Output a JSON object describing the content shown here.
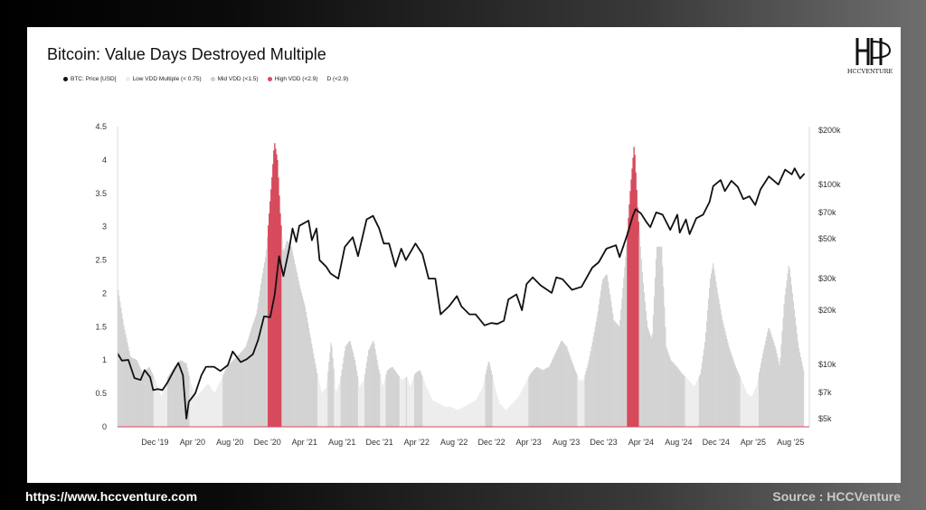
{
  "card": {
    "title": "Bitcoin: Value Days Destroyed Multiple",
    "logo_text": "HCCVENTURE"
  },
  "legend": [
    {
      "label": "BTC: Price [USD]",
      "color": "#111111"
    },
    {
      "label": "Low VDD Multiple (< 0.75)",
      "color": "#ededed"
    },
    {
      "label": "Mid VDD (<1.5)",
      "color": "#cfcfcf"
    },
    {
      "label": "High VDD (<2.9)",
      "color": "#d64a5c"
    },
    {
      "label": "D (<2.9)",
      "color": "#ffffff"
    }
  ],
  "footer": {
    "url": "https://www.hccventure.com",
    "source": "Source : HCCVenture"
  },
  "chart_data": {
    "type": "area",
    "title": "Bitcoin: Value Days Destroyed Multiple",
    "x_ticks": [
      "Dec '19",
      "Apr '20",
      "Aug '20",
      "Dec '20",
      "Apr '21",
      "Aug '21",
      "Dec '21",
      "Apr '22",
      "Aug '22",
      "Dec '22",
      "Apr '23",
      "Aug '23",
      "Dec '23",
      "Apr '24",
      "Aug '24",
      "Dec '24",
      "Apr '25",
      "Aug '25"
    ],
    "y_left": {
      "ticks": [
        "0",
        "0.5",
        "1",
        "1.5",
        "2",
        "2.5",
        "3",
        "3.5",
        "4",
        "4.5"
      ],
      "range": [
        0,
        4.5
      ]
    },
    "y_right": {
      "ticks": [
        "$5k",
        "$7k",
        "$10k",
        "$20k",
        "$30k",
        "$50k",
        "$70k",
        "$100k",
        "$200k"
      ],
      "scale": "log",
      "range": [
        4500,
        210000
      ]
    },
    "x_range": [
      "2019-08",
      "2025-10"
    ],
    "colors": {
      "low": "#ededed",
      "mid": "#d3d3d3",
      "high": "#d64a5c",
      "price": "#111111"
    },
    "vdd": [
      [
        "2019-08-01",
        2.05
      ],
      [
        "2019-08-20",
        1.5
      ],
      [
        "2019-09-10",
        1.05
      ],
      [
        "2019-10-01",
        1.0
      ],
      [
        "2019-10-20",
        0.8
      ],
      [
        "2019-11-10",
        0.9
      ],
      [
        "2019-12-01",
        0.7
      ],
      [
        "2019-12-20",
        0.45
      ],
      [
        "2020-01-10",
        0.75
      ],
      [
        "2020-02-01",
        0.9
      ],
      [
        "2020-02-20",
        1.0
      ],
      [
        "2020-03-10",
        0.95
      ],
      [
        "2020-03-25",
        0.65
      ],
      [
        "2020-04-10",
        0.45
      ],
      [
        "2020-05-01",
        0.55
      ],
      [
        "2020-05-20",
        0.65
      ],
      [
        "2020-06-10",
        0.5
      ],
      [
        "2020-07-01",
        0.7
      ],
      [
        "2020-07-20",
        0.9
      ],
      [
        "2020-08-10",
        1.0
      ],
      [
        "2020-09-01",
        1.1
      ],
      [
        "2020-09-20",
        1.2
      ],
      [
        "2020-10-10",
        1.5
      ],
      [
        "2020-10-25",
        1.7
      ],
      [
        "2020-11-10",
        2.2
      ],
      [
        "2020-11-25",
        2.6
      ],
      [
        "2020-12-05",
        3.2
      ],
      [
        "2020-12-15",
        3.8
      ],
      [
        "2020-12-22",
        4.28
      ],
      [
        "2021-01-01",
        4.0
      ],
      [
        "2021-01-10",
        3.2
      ],
      [
        "2021-01-20",
        2.6
      ],
      [
        "2021-02-01",
        2.8
      ],
      [
        "2021-02-15",
        2.7
      ],
      [
        "2021-03-01",
        2.4
      ],
      [
        "2021-03-15",
        2.1
      ],
      [
        "2021-04-01",
        1.8
      ],
      [
        "2021-04-20",
        1.3
      ],
      [
        "2021-05-10",
        0.8
      ],
      [
        "2021-05-25",
        0.5
      ],
      [
        "2021-06-10",
        0.6
      ],
      [
        "2021-06-25",
        1.3
      ],
      [
        "2021-07-10",
        0.5
      ],
      [
        "2021-07-25",
        0.7
      ],
      [
        "2021-08-10",
        1.2
      ],
      [
        "2021-08-25",
        1.3
      ],
      [
        "2021-09-10",
        1.0
      ],
      [
        "2021-09-25",
        0.6
      ],
      [
        "2021-10-10",
        0.7
      ],
      [
        "2021-10-25",
        1.15
      ],
      [
        "2021-11-10",
        1.3
      ],
      [
        "2021-11-25",
        0.9
      ],
      [
        "2021-12-10",
        0.6
      ],
      [
        "2021-12-25",
        0.85
      ],
      [
        "2022-01-10",
        0.9
      ],
      [
        "2022-01-25",
        0.8
      ],
      [
        "2022-02-10",
        0.7
      ],
      [
        "2022-02-25",
        0.75
      ],
      [
        "2022-03-10",
        0.6
      ],
      [
        "2022-03-25",
        0.8
      ],
      [
        "2022-04-10",
        0.85
      ],
      [
        "2022-05-01",
        0.6
      ],
      [
        "2022-05-20",
        0.4
      ],
      [
        "2022-06-10",
        0.35
      ],
      [
        "2022-07-01",
        0.3
      ],
      [
        "2022-07-20",
        0.3
      ],
      [
        "2022-08-10",
        0.25
      ],
      [
        "2022-09-01",
        0.3
      ],
      [
        "2022-09-20",
        0.35
      ],
      [
        "2022-10-10",
        0.4
      ],
      [
        "2022-11-01",
        0.6
      ],
      [
        "2022-11-20",
        1.0
      ],
      [
        "2022-12-10",
        0.6
      ],
      [
        "2022-12-25",
        0.35
      ],
      [
        "2023-01-15",
        0.25
      ],
      [
        "2023-02-05",
        0.35
      ],
      [
        "2023-02-25",
        0.45
      ],
      [
        "2023-03-15",
        0.6
      ],
      [
        "2023-04-05",
        0.8
      ],
      [
        "2023-04-25",
        0.9
      ],
      [
        "2023-05-15",
        0.85
      ],
      [
        "2023-06-05",
        0.9
      ],
      [
        "2023-06-25",
        1.1
      ],
      [
        "2023-07-15",
        1.3
      ],
      [
        "2023-08-01",
        1.2
      ],
      [
        "2023-08-20",
        0.95
      ],
      [
        "2023-09-10",
        0.7
      ],
      [
        "2023-09-25",
        0.7
      ],
      [
        "2023-10-10",
        0.95
      ],
      [
        "2023-10-25",
        1.3
      ],
      [
        "2023-11-10",
        1.7
      ],
      [
        "2023-11-25",
        2.2
      ],
      [
        "2023-12-10",
        2.3
      ],
      [
        "2024-01-01",
        1.6
      ],
      [
        "2024-01-20",
        1.5
      ],
      [
        "2024-02-10",
        2.6
      ],
      [
        "2024-02-25",
        3.6
      ],
      [
        "2024-03-08",
        4.25
      ],
      [
        "2024-03-20",
        3.2
      ],
      [
        "2024-04-05",
        2.2
      ],
      [
        "2024-04-20",
        1.5
      ],
      [
        "2024-05-05",
        1.3
      ],
      [
        "2024-05-20",
        2.7
      ],
      [
        "2024-06-05",
        2.7
      ],
      [
        "2024-06-20",
        1.2
      ],
      [
        "2024-07-05",
        1.0
      ],
      [
        "2024-07-25",
        0.9
      ],
      [
        "2024-08-10",
        0.8
      ],
      [
        "2024-09-01",
        0.7
      ],
      [
        "2024-09-20",
        0.6
      ],
      [
        "2024-10-10",
        0.8
      ],
      [
        "2024-10-25",
        1.3
      ],
      [
        "2024-11-10",
        2.2
      ],
      [
        "2024-11-20",
        2.45
      ],
      [
        "2024-12-05",
        2.0
      ],
      [
        "2024-12-20",
        1.6
      ],
      [
        "2025-01-10",
        1.2
      ],
      [
        "2025-02-01",
        0.9
      ],
      [
        "2025-02-20",
        0.7
      ],
      [
        "2025-03-10",
        0.5
      ],
      [
        "2025-03-25",
        0.45
      ],
      [
        "2025-04-10",
        0.6
      ],
      [
        "2025-05-01",
        1.1
      ],
      [
        "2025-05-20",
        1.5
      ],
      [
        "2025-06-10",
        1.2
      ],
      [
        "2025-06-25",
        0.9
      ],
      [
        "2025-07-10",
        1.9
      ],
      [
        "2025-07-25",
        2.45
      ],
      [
        "2025-08-10",
        1.8
      ],
      [
        "2025-08-25",
        1.2
      ],
      [
        "2025-09-10",
        0.85
      ]
    ],
    "price": [
      [
        "2019-08-01",
        11500
      ],
      [
        "2019-08-15",
        10500
      ],
      [
        "2019-09-05",
        10600
      ],
      [
        "2019-09-25",
        8400
      ],
      [
        "2019-10-15",
        8200
      ],
      [
        "2019-10-28",
        9300
      ],
      [
        "2019-11-15",
        8500
      ],
      [
        "2019-11-25",
        7200
      ],
      [
        "2019-12-10",
        7300
      ],
      [
        "2019-12-25",
        7200
      ],
      [
        "2020-01-10",
        7900
      ],
      [
        "2020-02-01",
        9300
      ],
      [
        "2020-02-15",
        10200
      ],
      [
        "2020-03-01",
        8700
      ],
      [
        "2020-03-12",
        5000
      ],
      [
        "2020-03-20",
        6200
      ],
      [
        "2020-04-10",
        6900
      ],
      [
        "2020-04-30",
        8700
      ],
      [
        "2020-05-15",
        9700
      ],
      [
        "2020-06-10",
        9700
      ],
      [
        "2020-07-01",
        9200
      ],
      [
        "2020-07-25",
        9900
      ],
      [
        "2020-08-10",
        11800
      ],
      [
        "2020-09-05",
        10300
      ],
      [
        "2020-09-25",
        10700
      ],
      [
        "2020-10-15",
        11400
      ],
      [
        "2020-11-01",
        13700
      ],
      [
        "2020-11-20",
        18500
      ],
      [
        "2020-12-10",
        18300
      ],
      [
        "2020-12-25",
        24500
      ],
      [
        "2021-01-08",
        40000
      ],
      [
        "2021-01-22",
        31000
      ],
      [
        "2021-02-10",
        44000
      ],
      [
        "2021-02-21",
        57000
      ],
      [
        "2021-03-05",
        48000
      ],
      [
        "2021-03-15",
        59000
      ],
      [
        "2021-04-14",
        63000
      ],
      [
        "2021-04-25",
        49000
      ],
      [
        "2021-05-10",
        57000
      ],
      [
        "2021-05-20",
        38000
      ],
      [
        "2021-06-10",
        35000
      ],
      [
        "2021-06-25",
        32000
      ],
      [
        "2021-07-20",
        30000
      ],
      [
        "2021-08-10",
        45000
      ],
      [
        "2021-09-05",
        51000
      ],
      [
        "2021-09-22",
        40000
      ],
      [
        "2021-10-20",
        64000
      ],
      [
        "2021-11-10",
        67000
      ],
      [
        "2021-11-30",
        57000
      ],
      [
        "2021-12-15",
        47000
      ],
      [
        "2022-01-01",
        47000
      ],
      [
        "2022-01-22",
        35000
      ],
      [
        "2022-02-10",
        44000
      ],
      [
        "2022-02-25",
        38000
      ],
      [
        "2022-03-28",
        47000
      ],
      [
        "2022-04-20",
        41000
      ],
      [
        "2022-05-10",
        30000
      ],
      [
        "2022-06-01",
        30000
      ],
      [
        "2022-06-18",
        19000
      ],
      [
        "2022-07-15",
        21000
      ],
      [
        "2022-08-10",
        24000
      ],
      [
        "2022-08-25",
        21000
      ],
      [
        "2022-09-20",
        19000
      ],
      [
        "2022-10-10",
        19000
      ],
      [
        "2022-11-08",
        16500
      ],
      [
        "2022-11-30",
        17000
      ],
      [
        "2022-12-20",
        16800
      ],
      [
        "2023-01-10",
        17500
      ],
      [
        "2023-01-25",
        23000
      ],
      [
        "2023-02-20",
        24500
      ],
      [
        "2023-03-10",
        20000
      ],
      [
        "2023-03-25",
        28000
      ],
      [
        "2023-04-14",
        30500
      ],
      [
        "2023-05-10",
        27500
      ],
      [
        "2023-06-15",
        25000
      ],
      [
        "2023-06-30",
        30500
      ],
      [
        "2023-07-20",
        29800
      ],
      [
        "2023-08-20",
        26000
      ],
      [
        "2023-09-20",
        27000
      ],
      [
        "2023-10-25",
        34500
      ],
      [
        "2023-11-15",
        37000
      ],
      [
        "2023-12-10",
        44000
      ],
      [
        "2024-01-10",
        46000
      ],
      [
        "2024-01-22",
        39500
      ],
      [
        "2024-02-15",
        52000
      ],
      [
        "2024-03-05",
        67000
      ],
      [
        "2024-03-14",
        73000
      ],
      [
        "2024-04-01",
        69000
      ],
      [
        "2024-04-18",
        62000
      ],
      [
        "2024-05-01",
        58000
      ],
      [
        "2024-05-20",
        70000
      ],
      [
        "2024-06-10",
        68000
      ],
      [
        "2024-07-05",
        56000
      ],
      [
        "2024-07-28",
        68000
      ],
      [
        "2024-08-05",
        54000
      ],
      [
        "2024-08-25",
        64000
      ],
      [
        "2024-09-06",
        53000
      ],
      [
        "2024-09-28",
        65000
      ],
      [
        "2024-10-20",
        68000
      ],
      [
        "2024-11-10",
        80000
      ],
      [
        "2024-11-22",
        98000
      ],
      [
        "2024-12-16",
        106000
      ],
      [
        "2024-12-30",
        92000
      ],
      [
        "2025-01-20",
        105000
      ],
      [
        "2025-02-10",
        97000
      ],
      [
        "2025-02-28",
        83000
      ],
      [
        "2025-03-20",
        86000
      ],
      [
        "2025-04-08",
        77000
      ],
      [
        "2025-04-25",
        94000
      ],
      [
        "2025-05-22",
        111000
      ],
      [
        "2025-06-22",
        100000
      ],
      [
        "2025-07-14",
        121000
      ],
      [
        "2025-08-05",
        114000
      ],
      [
        "2025-08-14",
        123000
      ],
      [
        "2025-09-01",
        108000
      ],
      [
        "2025-09-15",
        115000
      ]
    ]
  }
}
